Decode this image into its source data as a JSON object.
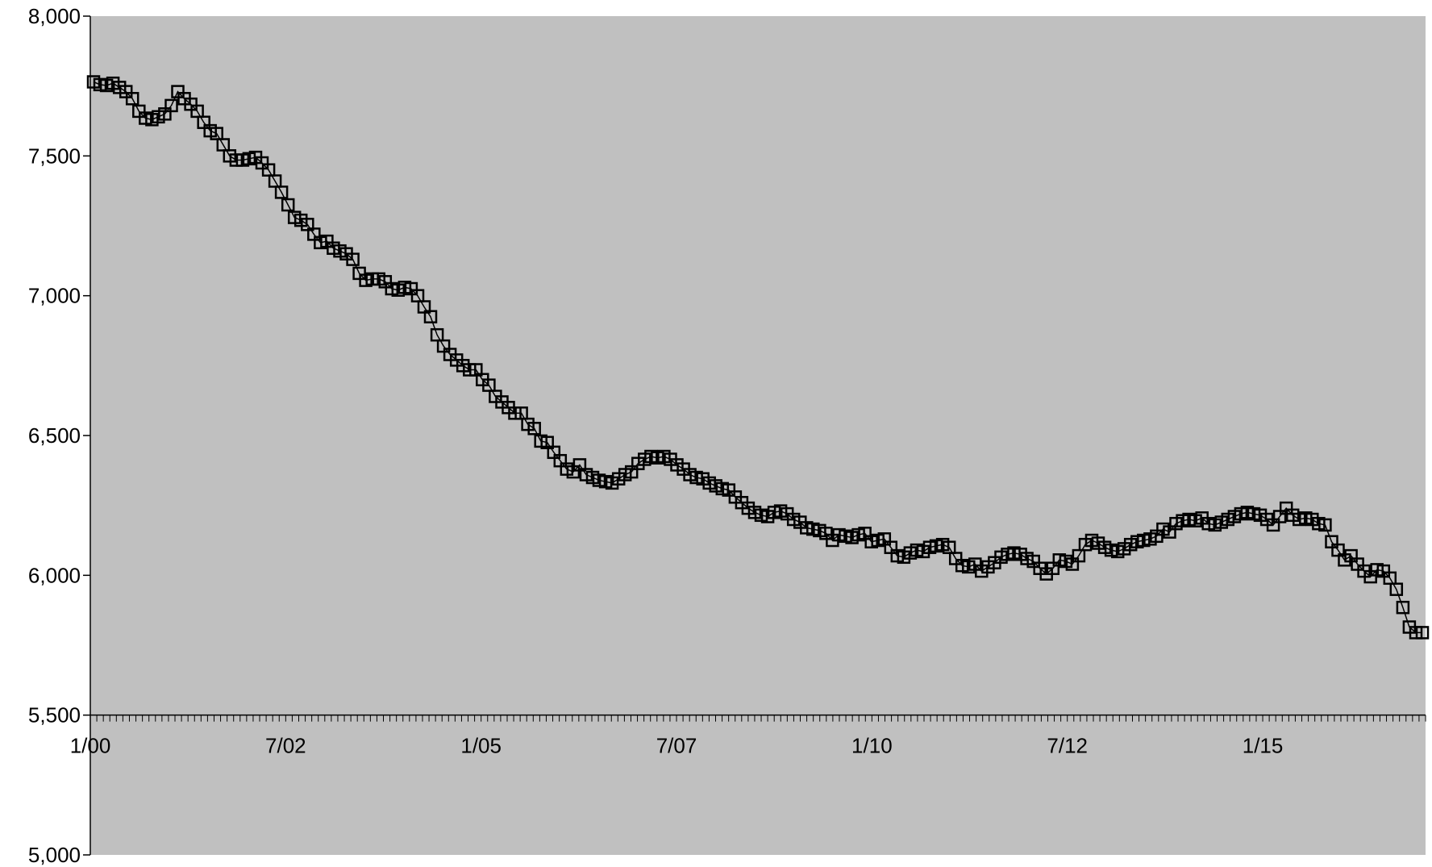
{
  "chart_data": {
    "type": "line",
    "title": "",
    "xlabel": "",
    "ylabel": "",
    "ylim": [
      5000,
      8000
    ],
    "y_ticks": [
      5000,
      5500,
      6000,
      6500,
      7000,
      7500,
      8000
    ],
    "y_tick_labels": [
      "5,000",
      "5,500",
      "6,000",
      "6,500",
      "7,000",
      "7,500",
      "8,000"
    ],
    "x_ticks": [
      {
        "label": "1/00",
        "index": 0
      },
      {
        "label": "7/02",
        "index": 30
      },
      {
        "label": "1/05",
        "index": 60
      },
      {
        "label": "7/07",
        "index": 90
      },
      {
        "label": "1/10",
        "index": 120
      },
      {
        "label": "7/12",
        "index": 150
      },
      {
        "label": "1/15",
        "index": 180
      }
    ],
    "x_axis_crosses_y": 5500,
    "grid": false,
    "legend": "none",
    "marker": "open-square",
    "colors": {
      "plot_background": "#c0c0c0",
      "line": "#000000",
      "marker": "#000000",
      "axis": "#000000"
    },
    "series": [
      {
        "values": [
          7765,
          7755,
          7752,
          7760,
          7745,
          7730,
          7705,
          7660,
          7635,
          7630,
          7640,
          7650,
          7680,
          7730,
          7705,
          7685,
          7660,
          7620,
          7590,
          7580,
          7540,
          7500,
          7485,
          7485,
          7490,
          7495,
          7475,
          7450,
          7410,
          7370,
          7325,
          7280,
          7270,
          7255,
          7220,
          7190,
          7195,
          7170,
          7160,
          7150,
          7130,
          7080,
          7055,
          7060,
          7060,
          7050,
          7025,
          7020,
          7030,
          7025,
          7000,
          6960,
          6925,
          6860,
          6820,
          6790,
          6770,
          6750,
          6735,
          6735,
          6700,
          6680,
          6640,
          6620,
          6600,
          6580,
          6580,
          6540,
          6525,
          6480,
          6475,
          6440,
          6410,
          6380,
          6370,
          6395,
          6360,
          6350,
          6340,
          6335,
          6330,
          6345,
          6360,
          6370,
          6400,
          6415,
          6425,
          6420,
          6425,
          6415,
          6395,
          6380,
          6360,
          6350,
          6345,
          6330,
          6320,
          6310,
          6305,
          6280,
          6260,
          6240,
          6225,
          6215,
          6210,
          6225,
          6230,
          6220,
          6200,
          6190,
          6170,
          6165,
          6160,
          6150,
          6125,
          6145,
          6140,
          6135,
          6145,
          6150,
          6120,
          6125,
          6130,
          6100,
          6070,
          6065,
          6080,
          6090,
          6085,
          6100,
          6105,
          6110,
          6100,
          6060,
          6035,
          6030,
          6040,
          6015,
          6030,
          6045,
          6065,
          6075,
          6080,
          6075,
          6060,
          6050,
          6025,
          6005,
          6025,
          6055,
          6050,
          6040,
          6070,
          6110,
          6125,
          6115,
          6100,
          6090,
          6085,
          6095,
          6110,
          6120,
          6125,
          6130,
          6140,
          6165,
          6155,
          6185,
          6195,
          6200,
          6195,
          6205,
          6185,
          6180,
          6190,
          6200,
          6210,
          6220,
          6225,
          6220,
          6215,
          6200,
          6180,
          6210,
          6240,
          6215,
          6200,
          6205,
          6200,
          6185,
          6180,
          6120,
          6090,
          6055,
          6070,
          6040,
          6015,
          5995,
          6020,
          6015,
          5990,
          5950,
          5885,
          5815,
          5795,
          5795
        ]
      }
    ]
  }
}
